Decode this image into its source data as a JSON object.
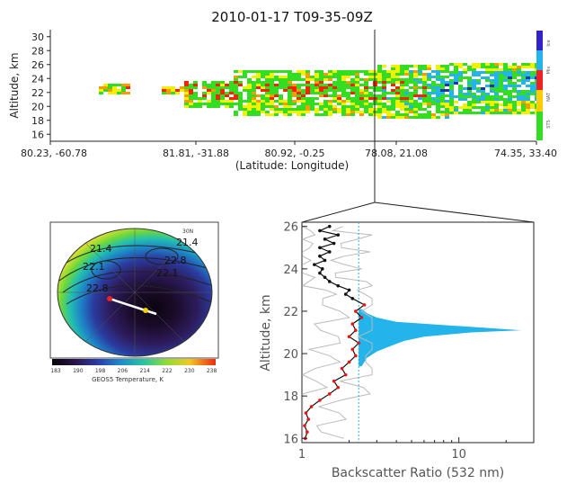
{
  "title": "2010-01-17 T09-35-09Z",
  "colors": {
    "green": "#33dd22",
    "yellow": "#f4f000",
    "orange": "#ff9900",
    "red": "#ff2200",
    "blue_cyan": "#22b4ea",
    "dark_blue": "#2233aa",
    "light_cyan": "#a8e6f4",
    "profile_black": "#111111",
    "profile_red": "#ee1111",
    "profile_gray": "#bbbbbb",
    "cyan_line": "#33aadd"
  },
  "curtain": {
    "ylabel": "Altitude, km",
    "yticks": [
      "16",
      "18",
      "20",
      "22",
      "24",
      "26",
      "28",
      "30"
    ],
    "xlabel": "(Latitude: Longitude)",
    "xticks": [
      "80.23, -60.78",
      "81.81, -31.88",
      "80.92, -0.25",
      "78.08, 21.08",
      "74.35, 33.40"
    ],
    "legend": [
      "Ice",
      "Mix",
      "NAT",
      "STS"
    ]
  },
  "map": {
    "colorbar_ticks": [
      "183",
      "190",
      "198",
      "206",
      "214",
      "222",
      "230",
      "238"
    ],
    "colorbar_label": "GEOS5 Temperature, K",
    "contour_labels": [
      "21.4",
      "22.1",
      "22.8",
      "22.8",
      "22.1",
      "21.4"
    ],
    "corner_label": "30N"
  },
  "chart_data": [
    {
      "type": "area",
      "title": "2010-01-17 T09-35-09Z",
      "xlabel": "(Latitude: Longitude)",
      "ylabel": "Altitude, km",
      "ylim": [
        15,
        31
      ],
      "x": [
        "80.23, -60.78",
        "81.81, -31.88",
        "80.92, -0.25",
        "78.08, 21.08",
        "74.35, 33.40"
      ],
      "legend": [
        "Ice",
        "Mix",
        "NAT",
        "STS"
      ],
      "legend_placement": "right"
    },
    {
      "type": "line",
      "xlabel": "Backscatter Ratio (532 nm)",
      "ylabel": "Altitude, km",
      "xscale": "log",
      "xlim": [
        1,
        30
      ],
      "ylim": [
        15.8,
        26.2
      ],
      "xticks": [
        "1",
        "10"
      ],
      "yticks": [
        "16",
        "18",
        "20",
        "22",
        "24",
        "26"
      ],
      "reference_line_x": 2.3,
      "series": [
        {
          "x": [
            1.05,
            1.08,
            1.04,
            1.1,
            1.06,
            1.15,
            1.3,
            1.5,
            1.7,
            1.6,
            1.9,
            1.8,
            2.0,
            2.2,
            2.1,
            2.3,
            2.0,
            2.2,
            2.1,
            2.4,
            2.2,
            2.5,
            2.1,
            1.9,
            2.0,
            1.7,
            1.5,
            1.4,
            1.3,
            1.35,
            1.2,
            1.4,
            1.3,
            1.5,
            1.3,
            1.6,
            1.4,
            1.7,
            1.3,
            1.5
          ],
          "y": [
            16.0,
            16.3,
            16.6,
            16.9,
            17.2,
            17.5,
            17.8,
            18.1,
            18.4,
            18.7,
            19.0,
            19.3,
            19.6,
            19.9,
            20.2,
            20.5,
            20.8,
            21.1,
            21.4,
            21.7,
            22.0,
            22.3,
            22.6,
            22.8,
            23.0,
            23.2,
            23.4,
            23.6,
            23.8,
            24.0,
            24.2,
            24.4,
            24.6,
            24.8,
            25.0,
            25.2,
            25.4,
            25.6,
            25.8,
            26.0
          ]
        }
      ],
      "band_x": [
        2.4,
        2.6,
        3.0,
        3.8,
        4.5,
        6.0,
        12.0,
        25.0,
        10.0,
        4.0,
        3.0,
        2.6,
        2.4
      ],
      "band_y": [
        19.4,
        19.8,
        20.1,
        20.4,
        20.6,
        20.8,
        21.0,
        21.1,
        21.3,
        21.5,
        21.7,
        21.9,
        22.1
      ]
    },
    {
      "type": "heatmap",
      "xlabel": "GEOS5 Temperature, K",
      "color_range": [
        183,
        238
      ],
      "colorbar_ticks": [
        183,
        190,
        198,
        206,
        214,
        222,
        230,
        238
      ]
    }
  ]
}
